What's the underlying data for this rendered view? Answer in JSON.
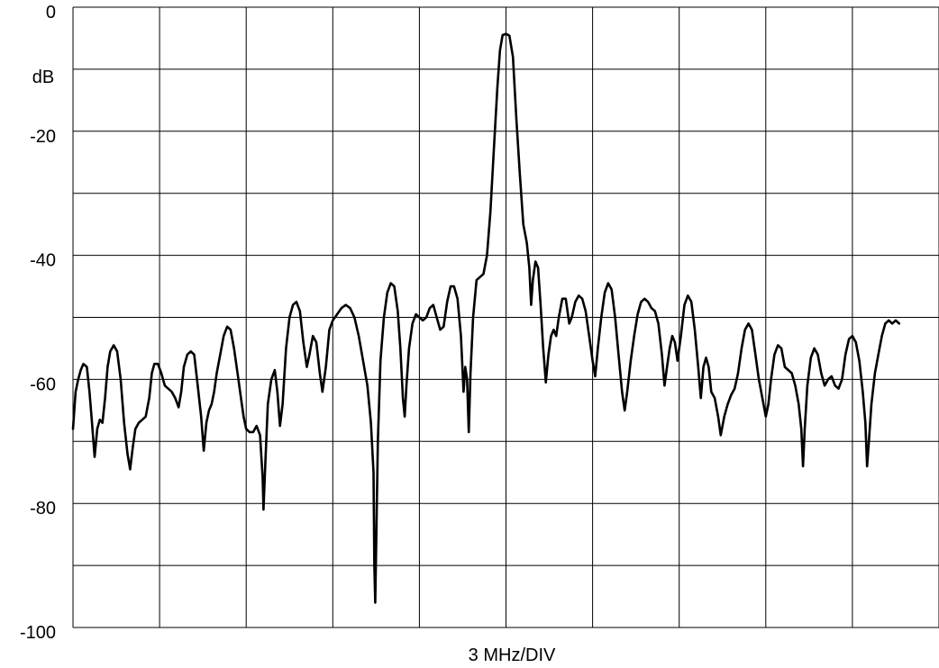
{
  "chart_data": {
    "type": "line",
    "title": "",
    "xlabel": "3 MHz/DIV",
    "ylabel": "dB",
    "ylim": [
      -100,
      0
    ],
    "xlim": [
      0,
      10
    ],
    "grid": true,
    "y_ticks": [
      {
        "value": 0,
        "label": "0"
      },
      {
        "value": -20,
        "label": "-20"
      },
      {
        "value": -40,
        "label": "-40"
      },
      {
        "value": -60,
        "label": "-60"
      },
      {
        "value": -80,
        "label": "-80"
      },
      {
        "value": -100,
        "label": "-100"
      }
    ],
    "x_divisions": 10,
    "y_divisions": 10,
    "line_color": "#000000",
    "series": [
      {
        "name": "",
        "points": [
          [
            0.0,
            -68
          ],
          [
            0.03,
            -62
          ],
          [
            0.06,
            -60
          ],
          [
            0.09,
            -58.5
          ],
          [
            0.12,
            -57.5
          ],
          [
            0.16,
            -58
          ],
          [
            0.19,
            -62
          ],
          [
            0.22,
            -67
          ],
          [
            0.25,
            -72.5
          ],
          [
            0.28,
            -68
          ],
          [
            0.31,
            -66.5
          ],
          [
            0.34,
            -67
          ],
          [
            0.37,
            -63
          ],
          [
            0.4,
            -58
          ],
          [
            0.43,
            -55.5
          ],
          [
            0.47,
            -54.5
          ],
          [
            0.51,
            -55.5
          ],
          [
            0.55,
            -60
          ],
          [
            0.59,
            -67
          ],
          [
            0.63,
            -72
          ],
          [
            0.66,
            -74.5
          ],
          [
            0.69,
            -71
          ],
          [
            0.72,
            -68
          ],
          [
            0.76,
            -67
          ],
          [
            0.8,
            -66.5
          ],
          [
            0.84,
            -66
          ],
          [
            0.88,
            -63
          ],
          [
            0.91,
            -59
          ],
          [
            0.94,
            -57.5
          ],
          [
            0.98,
            -57.5
          ],
          [
            1.02,
            -59
          ],
          [
            1.06,
            -61
          ],
          [
            1.1,
            -61.5
          ],
          [
            1.14,
            -62
          ],
          [
            1.18,
            -63
          ],
          [
            1.22,
            -64.5
          ],
          [
            1.25,
            -62
          ],
          [
            1.28,
            -58
          ],
          [
            1.32,
            -56
          ],
          [
            1.36,
            -55.5
          ],
          [
            1.4,
            -56
          ],
          [
            1.44,
            -61
          ],
          [
            1.48,
            -66
          ],
          [
            1.51,
            -71.5
          ],
          [
            1.54,
            -67
          ],
          [
            1.57,
            -65
          ],
          [
            1.6,
            -64
          ],
          [
            1.63,
            -62
          ],
          [
            1.66,
            -59
          ],
          [
            1.7,
            -56
          ],
          [
            1.74,
            -53
          ],
          [
            1.78,
            -51.5
          ],
          [
            1.82,
            -52
          ],
          [
            1.86,
            -55
          ],
          [
            1.9,
            -59
          ],
          [
            1.94,
            -63
          ],
          [
            1.97,
            -66
          ],
          [
            2.0,
            -68
          ],
          [
            2.04,
            -68.5
          ],
          [
            2.08,
            -68.5
          ],
          [
            2.12,
            -67.5
          ],
          [
            2.16,
            -69
          ],
          [
            2.19,
            -76
          ],
          [
            2.2,
            -81
          ],
          [
            2.22,
            -74
          ],
          [
            2.25,
            -64
          ],
          [
            2.29,
            -60
          ],
          [
            2.33,
            -58.5
          ],
          [
            2.36,
            -62
          ],
          [
            2.39,
            -67.5
          ],
          [
            2.42,
            -64
          ],
          [
            2.46,
            -55
          ],
          [
            2.5,
            -50
          ],
          [
            2.54,
            -48
          ],
          [
            2.58,
            -47.5
          ],
          [
            2.62,
            -49
          ],
          [
            2.66,
            -54
          ],
          [
            2.7,
            -58
          ],
          [
            2.73,
            -56
          ],
          [
            2.77,
            -53
          ],
          [
            2.81,
            -54
          ],
          [
            2.85,
            -59
          ],
          [
            2.88,
            -62
          ],
          [
            2.92,
            -58
          ],
          [
            2.96,
            -52
          ],
          [
            3.0,
            -50.5
          ],
          [
            3.05,
            -49.5
          ],
          [
            3.1,
            -48.5
          ],
          [
            3.15,
            -48
          ],
          [
            3.2,
            -48.5
          ],
          [
            3.25,
            -50
          ],
          [
            3.3,
            -53
          ],
          [
            3.35,
            -57
          ],
          [
            3.4,
            -61
          ],
          [
            3.44,
            -67
          ],
          [
            3.47,
            -75
          ],
          [
            3.48,
            -90
          ],
          [
            3.49,
            -96
          ],
          [
            3.5,
            -88
          ],
          [
            3.52,
            -70
          ],
          [
            3.55,
            -57
          ],
          [
            3.59,
            -50
          ],
          [
            3.63,
            -46
          ],
          [
            3.67,
            -44.5
          ],
          [
            3.71,
            -45
          ],
          [
            3.75,
            -49
          ],
          [
            3.78,
            -55
          ],
          [
            3.81,
            -63
          ],
          [
            3.83,
            -66
          ],
          [
            3.85,
            -61
          ],
          [
            3.88,
            -55
          ],
          [
            3.92,
            -51
          ],
          [
            3.96,
            -49.5
          ],
          [
            4.0,
            -50
          ],
          [
            4.04,
            -50.5
          ],
          [
            4.08,
            -50
          ],
          [
            4.12,
            -48.5
          ],
          [
            4.16,
            -48
          ],
          [
            4.2,
            -50
          ],
          [
            4.24,
            -52
          ],
          [
            4.28,
            -51.5
          ],
          [
            4.32,
            -47.5
          ],
          [
            4.36,
            -45
          ],
          [
            4.4,
            -45
          ],
          [
            4.44,
            -47
          ],
          [
            4.48,
            -53
          ],
          [
            4.51,
            -62
          ],
          [
            4.53,
            -58
          ],
          [
            4.55,
            -60
          ],
          [
            4.57,
            -68.5
          ],
          [
            4.59,
            -59
          ],
          [
            4.62,
            -50
          ],
          [
            4.66,
            -44
          ],
          [
            4.7,
            -43.5
          ],
          [
            4.74,
            -43
          ],
          [
            4.78,
            -40
          ],
          [
            4.82,
            -33
          ],
          [
            4.86,
            -23
          ],
          [
            4.9,
            -13
          ],
          [
            4.93,
            -7
          ],
          [
            4.96,
            -4.5
          ],
          [
            5.0,
            -4.3
          ],
          [
            5.04,
            -4.6
          ],
          [
            5.08,
            -8
          ],
          [
            5.12,
            -18
          ],
          [
            5.16,
            -27
          ],
          [
            5.2,
            -35
          ],
          [
            5.24,
            -38
          ],
          [
            5.27,
            -42
          ],
          [
            5.29,
            -48
          ],
          [
            5.31,
            -44
          ],
          [
            5.34,
            -41
          ],
          [
            5.37,
            -42
          ],
          [
            5.4,
            -48
          ],
          [
            5.43,
            -55
          ],
          [
            5.46,
            -60.5
          ],
          [
            5.49,
            -56
          ],
          [
            5.52,
            -53
          ],
          [
            5.55,
            -52
          ],
          [
            5.58,
            -53
          ],
          [
            5.61,
            -50
          ],
          [
            5.65,
            -47
          ],
          [
            5.69,
            -47
          ],
          [
            5.73,
            -51
          ],
          [
            5.76,
            -50
          ],
          [
            5.8,
            -47.5
          ],
          [
            5.84,
            -46.5
          ],
          [
            5.88,
            -47
          ],
          [
            5.92,
            -49
          ],
          [
            5.96,
            -53
          ],
          [
            6.0,
            -57
          ],
          [
            6.03,
            -59.5
          ],
          [
            6.06,
            -55
          ],
          [
            6.1,
            -50
          ],
          [
            6.14,
            -46
          ],
          [
            6.18,
            -44.5
          ],
          [
            6.22,
            -45.5
          ],
          [
            6.26,
            -50
          ],
          [
            6.3,
            -56
          ],
          [
            6.34,
            -62
          ],
          [
            6.37,
            -65
          ],
          [
            6.4,
            -62
          ],
          [
            6.44,
            -57
          ],
          [
            6.48,
            -53
          ],
          [
            6.52,
            -49.5
          ],
          [
            6.56,
            -47.5
          ],
          [
            6.6,
            -47
          ],
          [
            6.64,
            -47.5
          ],
          [
            6.68,
            -48.5
          ],
          [
            6.72,
            -49
          ],
          [
            6.76,
            -51
          ],
          [
            6.8,
            -56
          ],
          [
            6.83,
            -61
          ],
          [
            6.86,
            -58
          ],
          [
            6.89,
            -55
          ],
          [
            6.92,
            -53
          ],
          [
            6.95,
            -54
          ],
          [
            6.98,
            -57
          ],
          [
            7.02,
            -53
          ],
          [
            7.06,
            -48
          ],
          [
            7.1,
            -46.5
          ],
          [
            7.14,
            -47.5
          ],
          [
            7.18,
            -52
          ],
          [
            7.22,
            -58
          ],
          [
            7.25,
            -63
          ],
          [
            7.28,
            -58
          ],
          [
            7.31,
            -56.5
          ],
          [
            7.34,
            -58
          ],
          [
            7.37,
            -62
          ],
          [
            7.41,
            -63
          ],
          [
            7.45,
            -66
          ],
          [
            7.48,
            -69
          ],
          [
            7.52,
            -66
          ],
          [
            7.56,
            -64
          ],
          [
            7.6,
            -62.5
          ],
          [
            7.64,
            -61.5
          ],
          [
            7.68,
            -59
          ],
          [
            7.72,
            -55
          ],
          [
            7.76,
            -52
          ],
          [
            7.8,
            -51
          ],
          [
            7.84,
            -52
          ],
          [
            7.88,
            -56
          ],
          [
            7.92,
            -60
          ],
          [
            7.96,
            -63
          ],
          [
            8.0,
            -66
          ],
          [
            8.03,
            -64
          ],
          [
            8.06,
            -60
          ],
          [
            8.1,
            -56
          ],
          [
            8.14,
            -54.5
          ],
          [
            8.18,
            -55
          ],
          [
            8.22,
            -58
          ],
          [
            8.26,
            -58.5
          ],
          [
            8.3,
            -59
          ],
          [
            8.34,
            -61
          ],
          [
            8.38,
            -64
          ],
          [
            8.41,
            -68
          ],
          [
            8.43,
            -74
          ],
          [
            8.45,
            -68
          ],
          [
            8.48,
            -61
          ],
          [
            8.52,
            -56.5
          ],
          [
            8.56,
            -55
          ],
          [
            8.6,
            -56
          ],
          [
            8.64,
            -59
          ],
          [
            8.68,
            -61
          ],
          [
            8.72,
            -60
          ],
          [
            8.76,
            -59.5
          ],
          [
            8.8,
            -61
          ],
          [
            8.84,
            -61.5
          ],
          [
            8.88,
            -60
          ],
          [
            8.92,
            -56
          ],
          [
            8.96,
            -53.5
          ],
          [
            9.0,
            -53
          ],
          [
            9.04,
            -54
          ],
          [
            9.08,
            -57
          ],
          [
            9.12,
            -62
          ],
          [
            9.15,
            -67
          ],
          [
            9.17,
            -74
          ],
          [
            9.19,
            -70
          ],
          [
            9.22,
            -64
          ],
          [
            9.26,
            -59
          ],
          [
            9.3,
            -56
          ],
          [
            9.34,
            -53
          ],
          [
            9.38,
            -51
          ],
          [
            9.42,
            -50.5
          ],
          [
            9.46,
            -51
          ],
          [
            9.5,
            -50.5
          ],
          [
            9.54,
            -51
          ]
        ]
      }
    ]
  }
}
